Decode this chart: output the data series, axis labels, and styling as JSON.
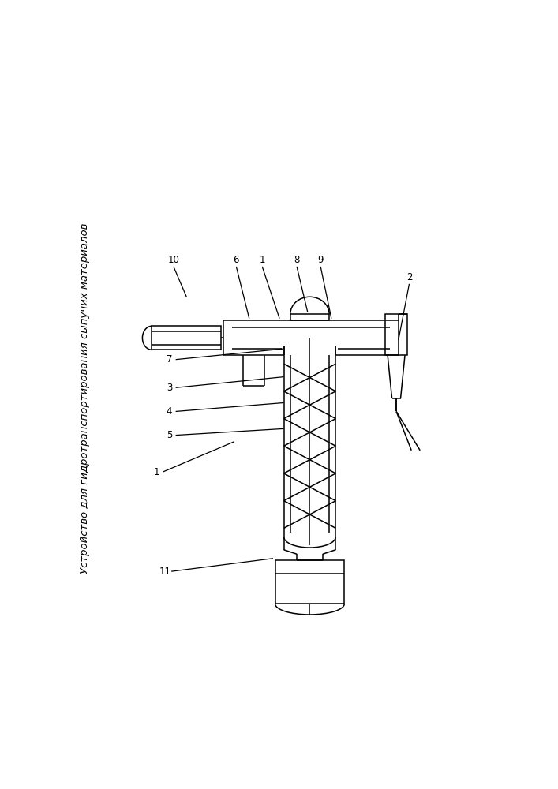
{
  "title": "Устройство для гидротранспортирования сыпучих материалов",
  "bg_color": "#ffffff",
  "line_color": "#000000",
  "lw": 1.1,
  "fig_width": 7.07,
  "fig_height": 10.0,
  "dpi": 100
}
